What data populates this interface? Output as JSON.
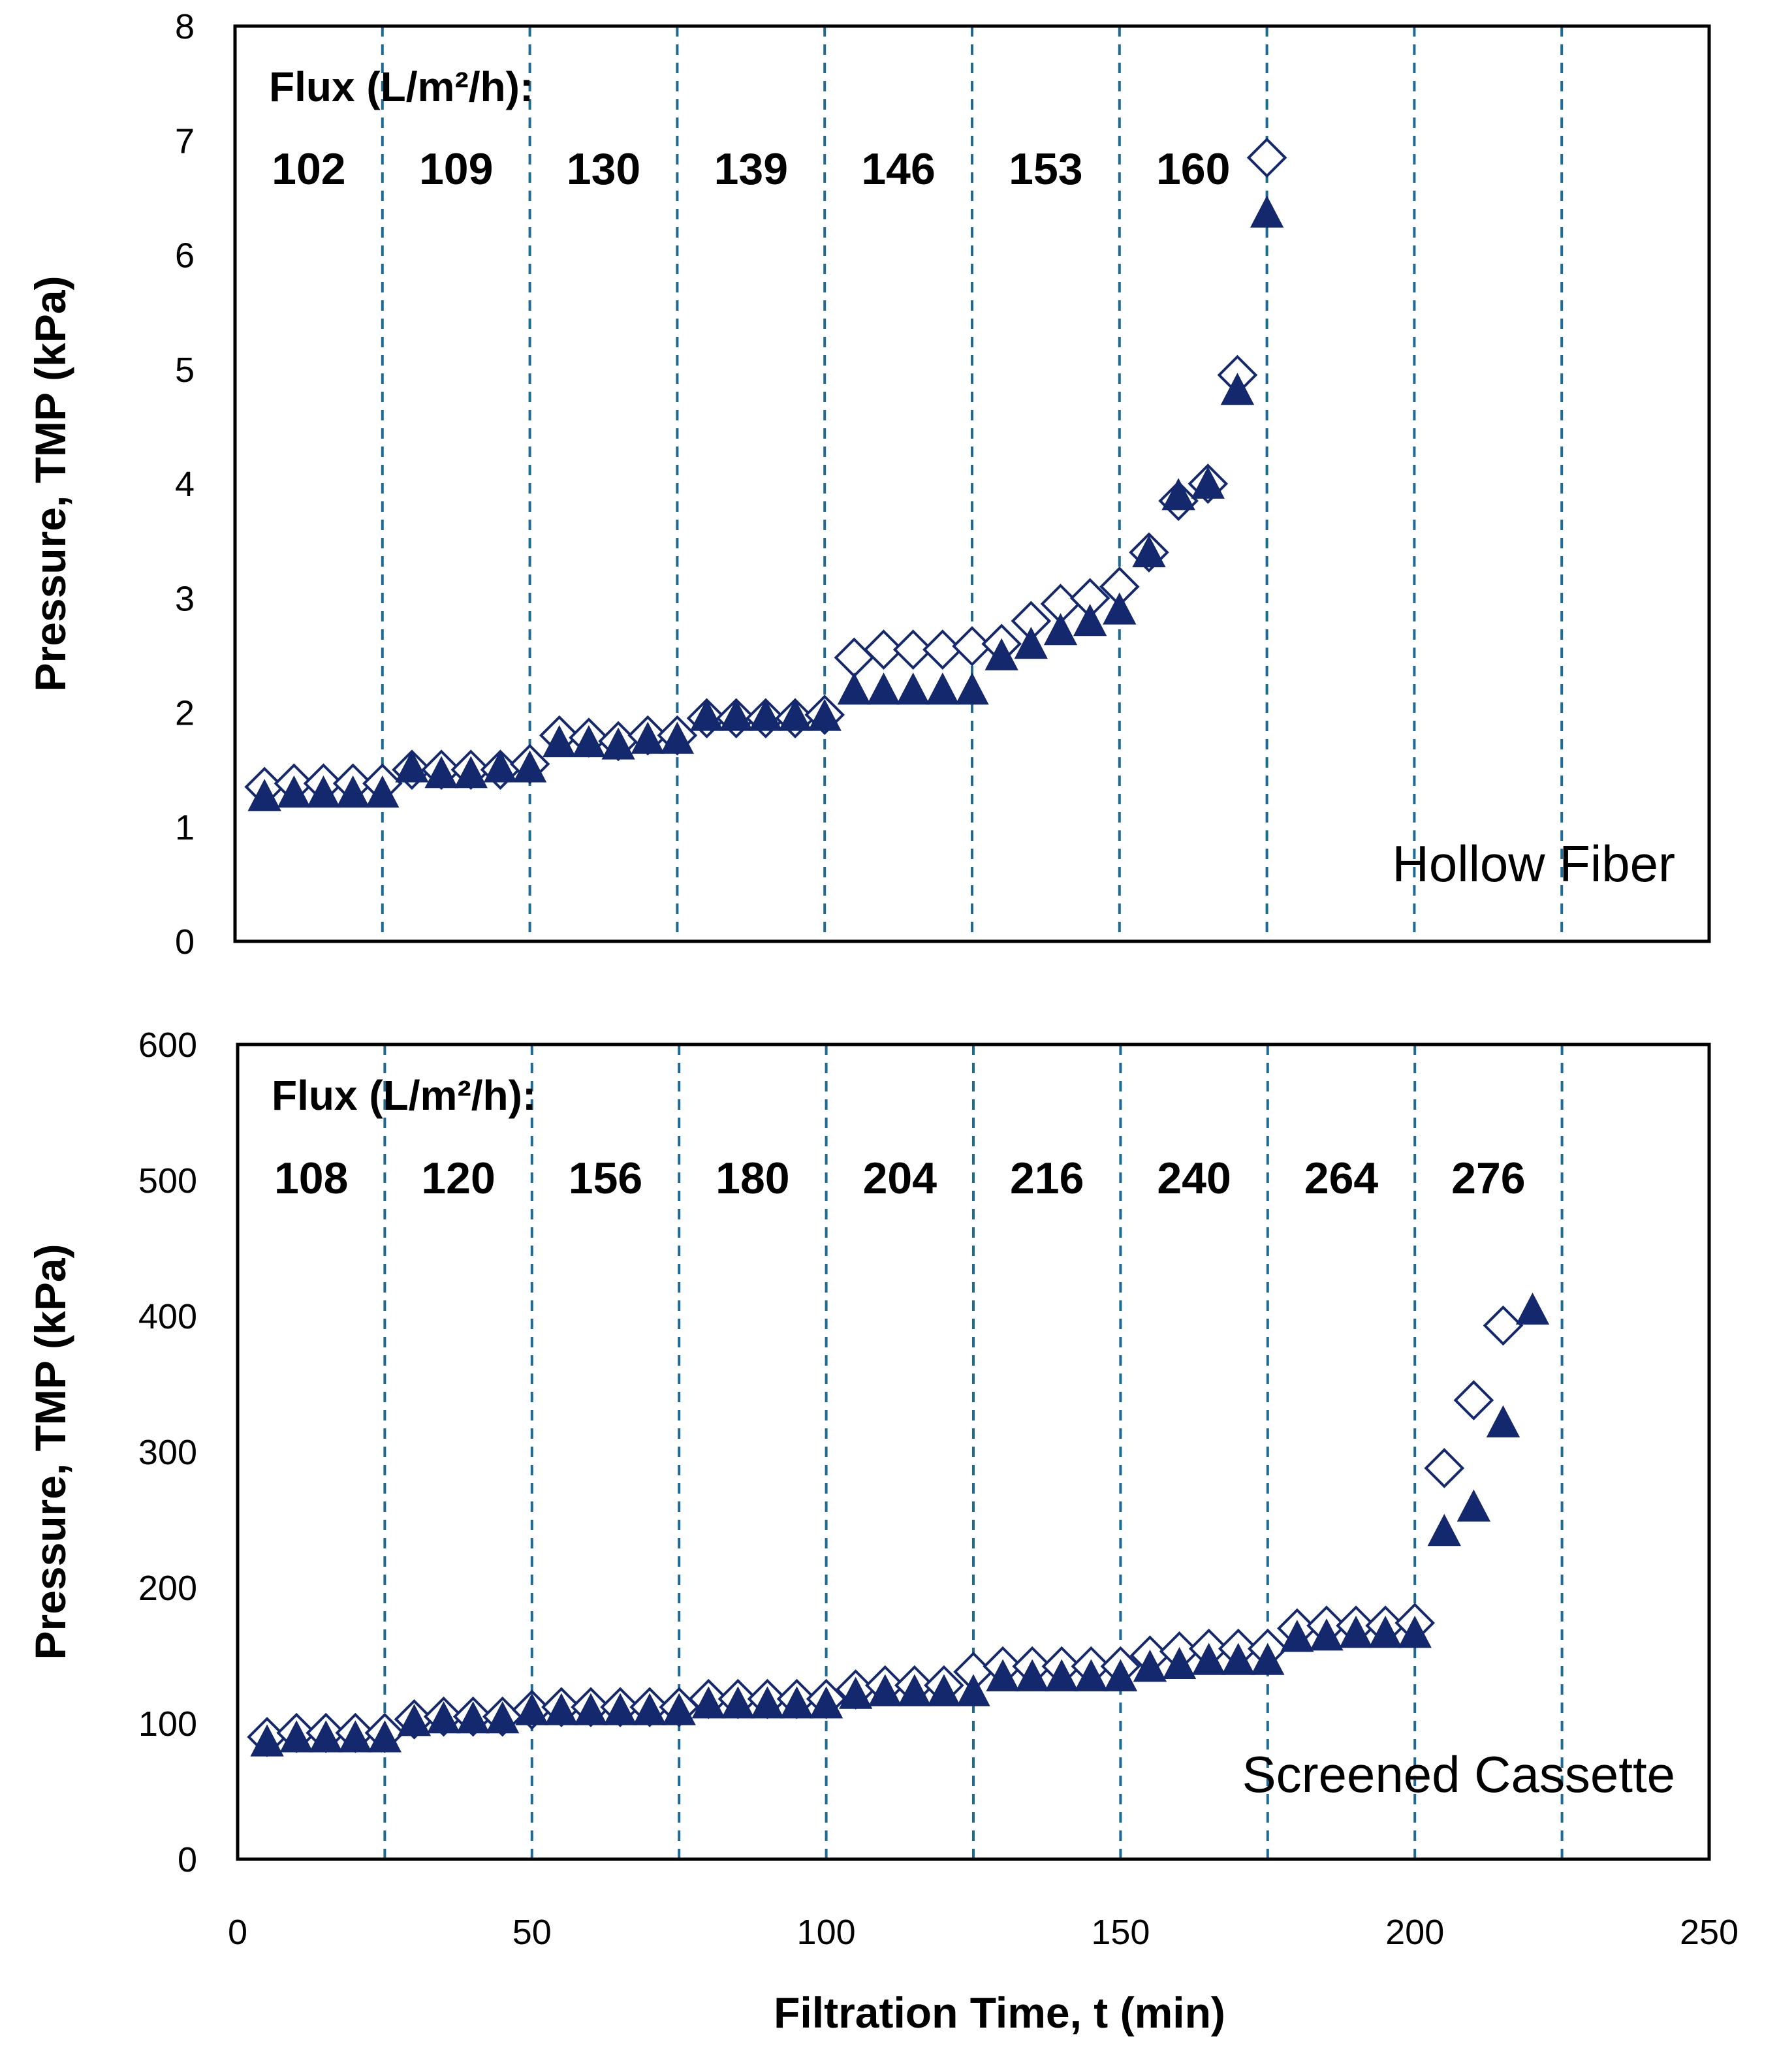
{
  "chart_data": [
    {
      "type": "scatter",
      "panel_label": "Hollow Fiber",
      "flux_title": "Flux (L/m²/h):",
      "flux_labels": [
        "102",
        "109",
        "130",
        "139",
        "146",
        "153",
        "160"
      ],
      "ylabel": "Pressure, TMP (kPa)",
      "xlabel": "",
      "xlim": [
        0,
        250
      ],
      "ylim": [
        0,
        8
      ],
      "yticks": [
        "0",
        "1",
        "2",
        "3",
        "4",
        "5",
        "6",
        "7",
        "8"
      ],
      "xticks": [],
      "grid": false,
      "vlines": [
        25,
        50,
        75,
        100,
        125,
        150,
        175,
        200,
        225
      ],
      "series": [
        {
          "name": "open diamond",
          "marker": "diamond-open",
          "x": [
            5,
            10,
            15,
            20,
            25,
            30,
            35,
            40,
            45,
            50,
            55,
            60,
            65,
            70,
            75,
            80,
            85,
            90,
            95,
            100,
            105,
            110,
            115,
            120,
            125,
            130,
            135,
            140,
            145,
            150,
            155,
            160,
            165,
            170,
            175
          ],
          "y": [
            1.35,
            1.38,
            1.38,
            1.38,
            1.38,
            1.5,
            1.5,
            1.5,
            1.5,
            1.55,
            1.8,
            1.78,
            1.75,
            1.8,
            1.8,
            1.95,
            1.95,
            1.95,
            1.95,
            1.98,
            2.48,
            2.55,
            2.55,
            2.55,
            2.58,
            2.6,
            2.8,
            2.95,
            3.0,
            3.1,
            3.4,
            3.85,
            4.0,
            4.95,
            6.85
          ]
        },
        {
          "name": "filled triangle",
          "marker": "triangle-filled",
          "x": [
            5,
            10,
            15,
            20,
            25,
            30,
            35,
            40,
            45,
            50,
            55,
            60,
            65,
            70,
            75,
            80,
            85,
            90,
            95,
            100,
            105,
            110,
            115,
            120,
            125,
            130,
            135,
            140,
            145,
            150,
            155,
            160,
            165,
            170,
            175
          ],
          "y": [
            1.25,
            1.28,
            1.28,
            1.28,
            1.28,
            1.5,
            1.45,
            1.45,
            1.5,
            1.5,
            1.72,
            1.72,
            1.7,
            1.75,
            1.75,
            1.95,
            1.95,
            1.95,
            1.95,
            1.95,
            2.18,
            2.18,
            2.18,
            2.18,
            2.18,
            2.48,
            2.58,
            2.7,
            2.78,
            2.88,
            3.38,
            3.88,
            3.98,
            4.8,
            6.35
          ]
        }
      ]
    },
    {
      "type": "scatter",
      "panel_label": "Screened Cassette",
      "flux_title": "Flux (L/m²/h):",
      "flux_labels": [
        "108",
        "120",
        "156",
        "180",
        "204",
        "216",
        "240",
        "264",
        "276"
      ],
      "ylabel": "Pressure, TMP (kPa)",
      "xlabel": "Filtration Time, t (min)",
      "xlim": [
        0,
        250
      ],
      "ylim": [
        0,
        600
      ],
      "yticks": [
        "0",
        "100",
        "200",
        "300",
        "400",
        "500",
        "600"
      ],
      "xticks": [
        "0",
        "50",
        "100",
        "150",
        "200",
        "250"
      ],
      "grid": false,
      "vlines": [
        25,
        50,
        75,
        100,
        125,
        150,
        175,
        200,
        225
      ],
      "series": [
        {
          "name": "open diamond",
          "marker": "diamond-open",
          "x": [
            5,
            10,
            15,
            20,
            25,
            30,
            35,
            40,
            45,
            50,
            55,
            60,
            65,
            70,
            75,
            80,
            85,
            90,
            95,
            100,
            105,
            110,
            115,
            120,
            125,
            130,
            135,
            140,
            145,
            150,
            155,
            160,
            165,
            170,
            175,
            180,
            185,
            190,
            195,
            200,
            205,
            210,
            215
          ],
          "y": [
            90,
            93,
            93,
            93,
            93,
            103,
            105,
            105,
            105,
            110,
            112,
            112,
            112,
            112,
            112,
            118,
            118,
            118,
            118,
            118,
            125,
            128,
            128,
            128,
            138,
            142,
            142,
            142,
            142,
            142,
            150,
            153,
            155,
            155,
            155,
            170,
            172,
            172,
            172,
            174,
            288,
            338,
            393
          ]
        },
        {
          "name": "filled triangle",
          "marker": "triangle-filled",
          "x": [
            5,
            10,
            15,
            20,
            25,
            30,
            35,
            40,
            45,
            50,
            55,
            60,
            65,
            70,
            75,
            80,
            85,
            90,
            95,
            100,
            105,
            110,
            115,
            120,
            125,
            130,
            135,
            140,
            145,
            150,
            155,
            160,
            165,
            170,
            175,
            180,
            185,
            190,
            195,
            200,
            205,
            210,
            215,
            220
          ],
          "y": [
            85,
            88,
            88,
            88,
            88,
            100,
            102,
            102,
            102,
            108,
            108,
            108,
            108,
            108,
            108,
            113,
            113,
            113,
            113,
            113,
            120,
            122,
            122,
            122,
            122,
            133,
            133,
            133,
            133,
            133,
            140,
            142,
            145,
            145,
            145,
            162,
            163,
            165,
            165,
            165,
            240,
            258,
            320,
            403
          ]
        }
      ]
    }
  ],
  "colors": {
    "marker": "#14286e",
    "vline": "#1f6a94",
    "axis": "#000000"
  }
}
